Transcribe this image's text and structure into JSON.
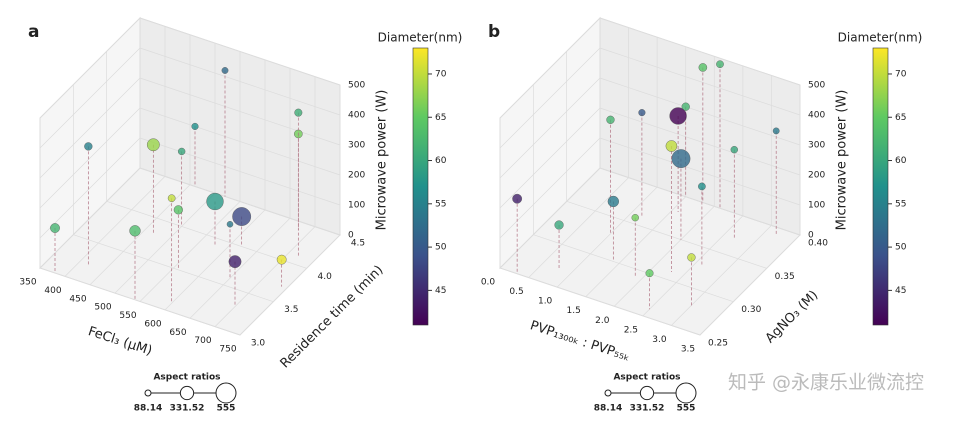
{
  "chart_data": [
    {
      "type": "scatter3d",
      "panel": "a",
      "xlabel": "FeCl₃ (μM)",
      "ylabel": "Residence time (min)",
      "zlabel": "Microwave power (W)",
      "xlim": [
        350,
        750
      ],
      "xticks": [
        350,
        400,
        450,
        500,
        550,
        600,
        650,
        700,
        750
      ],
      "ylim": [
        3.0,
        4.5
      ],
      "yticks": [
        {
          "value": 3,
          "label": "3.0"
        },
        3.5,
        {
          "value": 4,
          "label": "4.0"
        },
        4.5
      ],
      "zlim": [
        0,
        500
      ],
      "zticks": [
        0,
        100,
        200,
        300,
        400,
        500
      ],
      "x": [
        380,
        420,
        470,
        500,
        520,
        560,
        580,
        600,
        620,
        650,
        680,
        700,
        720,
        740,
        460,
        540
      ],
      "y": [
        3.0,
        3.2,
        3.8,
        4.0,
        4.5,
        3.5,
        3.9,
        3.1,
        4.0,
        3.6,
        4.4,
        3.3,
        4.1,
        3.7,
        4.5,
        3.0
      ],
      "z": [
        150,
        400,
        300,
        250,
        420,
        200,
        150,
        350,
        100,
        180,
        320,
        150,
        480,
        90,
        200,
        230
      ],
      "color_values": [
        62,
        55,
        68,
        60,
        52,
        64,
        58,
        70,
        48,
        54,
        66,
        44,
        61,
        72,
        57,
        63
      ],
      "sizes": [
        200,
        150,
        300,
        120,
        100,
        180,
        450,
        130,
        500,
        90,
        160,
        300,
        140,
        200,
        110,
        250
      ],
      "colorbar": {
        "title": "Diameter(nm)",
        "lim": [
          41,
          73
        ],
        "ticks": [
          45,
          50,
          55,
          60,
          65,
          70
        ]
      },
      "size_legend": {
        "title": "Aspect ratios",
        "values": [
          88.14,
          331.52,
          555
        ]
      }
    },
    {
      "type": "scatter3d",
      "panel": "b",
      "xlabel": "PVP₁₃₀₀ₖ : PVP₅₅ₖ",
      "ylabel": "AgNO₃ (M)",
      "zlabel": "Microwave power (W)",
      "xlim": [
        0,
        3.5
      ],
      "xticks": [
        {
          "value": 0,
          "label": "0.0"
        },
        0.5,
        {
          "value": 1,
          "label": "1.0"
        },
        1.5,
        {
          "value": 2,
          "label": "2.0"
        },
        2.5,
        {
          "value": 3,
          "label": "3.0"
        },
        3.5
      ],
      "ylim": [
        0.25,
        0.4
      ],
      "yticks": [
        0.25,
        {
          "value": 0.3,
          "label": "0.30"
        },
        0.35,
        {
          "value": 0.4,
          "label": "0.40"
        }
      ],
      "zlim": [
        0,
        500
      ],
      "zticks": [
        0,
        100,
        200,
        300,
        400,
        500
      ],
      "x": [
        0.3,
        0.8,
        1.0,
        1.2,
        1.4,
        1.6,
        1.8,
        2.0,
        2.1,
        2.3,
        2.5,
        2.7,
        3.0,
        3.2,
        1.5,
        2.6,
        1.9
      ],
      "y": [
        0.25,
        0.27,
        0.33,
        0.36,
        0.3,
        0.38,
        0.4,
        0.35,
        0.4,
        0.31,
        0.26,
        0.37,
        0.28,
        0.39,
        0.4,
        0.33,
        0.29
      ],
      "z": [
        250,
        150,
        380,
        350,
        200,
        320,
        450,
        270,
        480,
        420,
        120,
        300,
        160,
        350,
        300,
        260,
        200
      ],
      "color_values": [
        44,
        60,
        62,
        50,
        54,
        40,
        64,
        52,
        62,
        70,
        65,
        60,
        70,
        54,
        62,
        57,
        66
      ],
      "sizes": [
        200,
        180,
        150,
        110,
        250,
        450,
        160,
        500,
        130,
        260,
        140,
        120,
        150,
        100,
        150,
        130,
        120
      ],
      "colorbar": {
        "title": "Diameter(nm)",
        "lim": [
          41,
          73
        ],
        "ticks": [
          45,
          50,
          55,
          60,
          65,
          70
        ]
      },
      "size_legend": {
        "title": "Aspect ratios",
        "values": [
          88.14,
          331.52,
          555
        ]
      }
    }
  ],
  "watermark": "知乎 @永康乐业微流控"
}
